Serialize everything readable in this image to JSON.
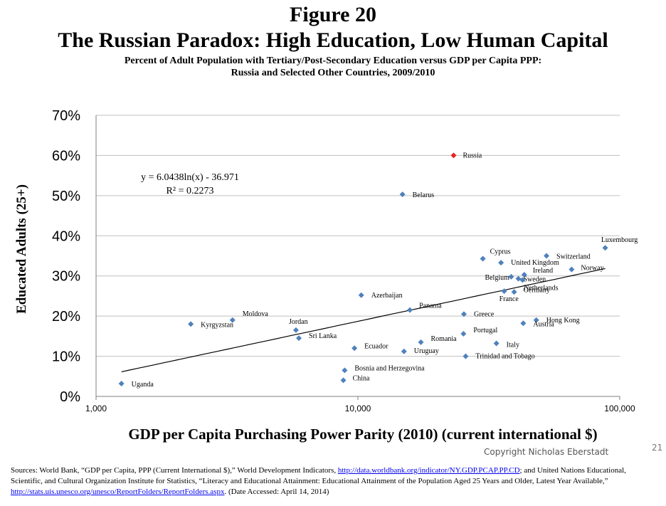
{
  "figure_label": "Figure 20",
  "title": "The Russian Paradox: High Education, Low Human Capital",
  "subtitle_line1": "Percent of Adult Population with Tertiary/Post-Secondary Education versus GDP per Capita PPP:",
  "subtitle_line2": "Russia and Selected Other Countries, 2009/2010",
  "copyright": "Copyright Nicholas Eberstadt",
  "page_number": "21",
  "sources": {
    "part1": "Sources: World Bank, “GDP per Capita, PPP (Current International $),” World Development Indicators, ",
    "link1": "http://data.worldbank.org/indicator/NY.GDP.PCAP.PP.CD",
    "part2": "; and United Nations Educational, Scientific, and Cultural Organization Institute for Statistics, “Literacy and Educational Attainment: Educational Attainment of the Population Aged 25 Years and Older, Latest Year Available,” ",
    "link2": "http://stats.uis.unesco.org/unesco/ReportFolders/ReportFolders.aspx",
    "part3": ". (Date Accessed: April 14, 2014)"
  },
  "chart_data": {
    "type": "scatter",
    "xlabel": "GDP per Capita Purchasing Power Parity (2010) (current international $)",
    "ylabel": "Educated Adults (25+)",
    "x_scale": "log",
    "xlim": [
      1000,
      100000
    ],
    "ylim": [
      0,
      70
    ],
    "x_ticks": [
      "1,000",
      "10,000",
      "100,000"
    ],
    "y_ticks": [
      "0%",
      "10%",
      "20%",
      "30%",
      "40%",
      "50%",
      "60%",
      "70%"
    ],
    "grid": "horizontal",
    "colors": {
      "points": "#4f81bd",
      "highlight": "#e8231b",
      "trend": "#000000",
      "grid": "#bfbfbf"
    },
    "points": [
      {
        "label": "Russia",
        "x": 23200,
        "y": 60,
        "highlight": true
      },
      {
        "label": "Belarus",
        "x": 14800,
        "y": 50.3
      },
      {
        "label": "Luxembourg",
        "x": 88000,
        "y": 37
      },
      {
        "label": "Switzerland",
        "x": 52500,
        "y": 35
      },
      {
        "label": "Cyprus",
        "x": 30000,
        "y": 34.3
      },
      {
        "label": "United Kingdom",
        "x": 35200,
        "y": 33.3
      },
      {
        "label": "Norway",
        "x": 65500,
        "y": 31.6
      },
      {
        "label": "Ireland",
        "x": 43200,
        "y": 30.3
      },
      {
        "label": "Belgium",
        "x": 38500,
        "y": 29.8
      },
      {
        "label": "Sweden",
        "x": 41000,
        "y": 29.3
      },
      {
        "label": "Netherlands",
        "x": 42500,
        "y": 29
      },
      {
        "label": "Germany",
        "x": 39500,
        "y": 26
      },
      {
        "label": "France",
        "x": 36200,
        "y": 26.2
      },
      {
        "label": "Azerbaijan",
        "x": 10300,
        "y": 25.2
      },
      {
        "label": "Panama",
        "x": 15800,
        "y": 21.5
      },
      {
        "label": "Greece",
        "x": 25400,
        "y": 20.5
      },
      {
        "label": "Hong Kong",
        "x": 48000,
        "y": 19
      },
      {
        "label": "Austria",
        "x": 42800,
        "y": 18.2
      },
      {
        "label": "Moldova",
        "x": 3320,
        "y": 19
      },
      {
        "label": "Kyrgyzstan",
        "x": 2300,
        "y": 18
      },
      {
        "label": "Jordan",
        "x": 5800,
        "y": 16.5
      },
      {
        "label": "Portugal",
        "x": 25300,
        "y": 15.6
      },
      {
        "label": "Sri Lanka",
        "x": 5950,
        "y": 14.5
      },
      {
        "label": "Romania",
        "x": 17400,
        "y": 13.5
      },
      {
        "label": "Italy",
        "x": 33800,
        "y": 13.2
      },
      {
        "label": "Ecuador",
        "x": 9700,
        "y": 12
      },
      {
        "label": "Uruguay",
        "x": 15000,
        "y": 11.2
      },
      {
        "label": "Trinidad and Tobago",
        "x": 25800,
        "y": 10
      },
      {
        "label": "Bosnia and Herzegovina",
        "x": 8900,
        "y": 6.5
      },
      {
        "label": "China",
        "x": 8800,
        "y": 4
      },
      {
        "label": "Uganda",
        "x": 1250,
        "y": 3.2
      }
    ],
    "trendline": {
      "type": "logarithmic",
      "equation": "y = 6.0438ln(x) - 36.971",
      "r_squared": "R² = 0.2273",
      "coef_a": 6.0438,
      "coef_b": -36.971,
      "x_range": [
        1250,
        88000
      ]
    }
  }
}
